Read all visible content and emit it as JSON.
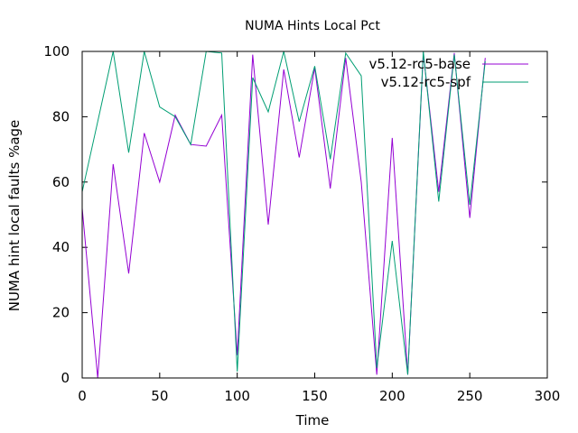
{
  "chart_data": {
    "type": "line",
    "title": "NUMA Hints Local Pct",
    "xlabel": "Time",
    "ylabel": "NUMA hint local faults %age",
    "xlim": [
      0,
      300
    ],
    "ylim": [
      0,
      100
    ],
    "xticks": [
      0,
      50,
      100,
      150,
      200,
      250,
      300
    ],
    "yticks": [
      0,
      20,
      40,
      60,
      80,
      100
    ],
    "grid": false,
    "legend_position": "top-right",
    "series": [
      {
        "name": "v5.12-rc5-base",
        "color": "#9400d3",
        "x": [
          0,
          10,
          20,
          30,
          40,
          50,
          60,
          70,
          80,
          90,
          100,
          110,
          120,
          130,
          140,
          150,
          160,
          170,
          180,
          190,
          200,
          210,
          220,
          230,
          240,
          250,
          260
        ],
        "y": [
          52,
          0,
          65.5,
          32,
          75,
          60,
          80.5,
          71.5,
          71,
          80.5,
          7,
          99,
          47,
          94.5,
          67.5,
          95,
          58,
          98,
          60,
          1,
          73.5,
          1,
          99.5,
          57,
          99.5,
          49,
          98
        ]
      },
      {
        "name": "v5.12-rc5-spf",
        "color": "#009e73",
        "x": [
          0,
          10,
          20,
          30,
          40,
          50,
          60,
          70,
          80,
          90,
          100,
          110,
          120,
          130,
          140,
          150,
          160,
          170,
          180,
          190,
          200,
          210,
          220,
          230,
          240,
          250,
          260
        ],
        "y": [
          57,
          78.5,
          100,
          69,
          100,
          83,
          80,
          71.5,
          100,
          99.5,
          2,
          92,
          81.5,
          100,
          78.5,
          95.5,
          67,
          99.5,
          92.5,
          3,
          42,
          1,
          100,
          54,
          99,
          53,
          97
        ]
      }
    ]
  }
}
